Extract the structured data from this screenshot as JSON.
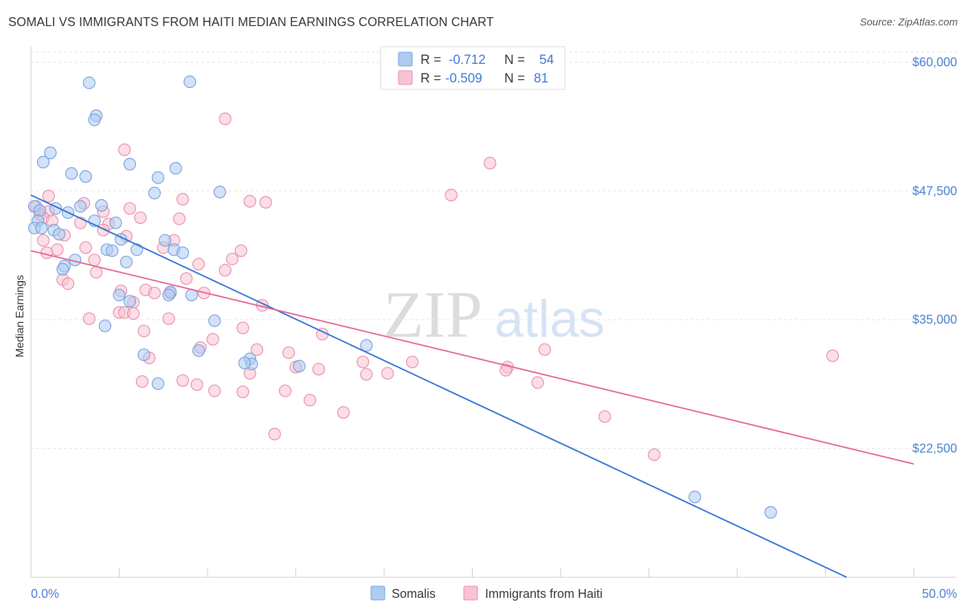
{
  "title": "SOMALI VS IMMIGRANTS FROM HAITI MEDIAN EARNINGS CORRELATION CHART",
  "source": "Source: ZipAtlas.com",
  "watermark": {
    "zip": "ZIP",
    "atlas": "atlas"
  },
  "legend_top": [
    {
      "r_label": "R =",
      "r_value": "-0.712",
      "n_label": "N =",
      "n_value": "54",
      "color": "#aecbf0",
      "stroke": "#6f9fde"
    },
    {
      "r_label": "R =",
      "r_value": "-0.509",
      "n_label": "N =",
      "n_value": "81",
      "color": "#f8c3d2",
      "stroke": "#e98aa8"
    }
  ],
  "legend_bottom": [
    {
      "label": "Somalis",
      "color": "#aecbf0",
      "stroke": "#6f9fde"
    },
    {
      "label": "Immigrants from Haiti",
      "color": "#f8c3d2",
      "stroke": "#e98aa8"
    }
  ],
  "chart_data": {
    "type": "scatter",
    "ylabel": "Median Earnings",
    "xlabel": "",
    "x_tick_labels": [
      "0.0%",
      "50.0%"
    ],
    "y_tick_labels": [
      "$60,000",
      "$47,500",
      "$35,000",
      "$22,500"
    ],
    "y_ticks": [
      60000,
      47500,
      35000,
      22500
    ],
    "xlim": [
      0,
      50
    ],
    "ylim": [
      10000,
      61500
    ],
    "grid": true,
    "legend_position": "top-center",
    "series": [
      {
        "name": "Somalis",
        "color": "#6f9fde",
        "fill": "#aecbf0",
        "line_color": "#2f6fd6",
        "trend": {
          "x0": 0,
          "y0": 47100,
          "x1": 46.2,
          "y1": 10000
        },
        "points": [
          [
            3.3,
            58000
          ],
          [
            9.0,
            58100
          ],
          [
            3.7,
            54800
          ],
          [
            3.6,
            54400
          ],
          [
            1.1,
            51200
          ],
          [
            0.7,
            50300
          ],
          [
            5.6,
            50100
          ],
          [
            8.2,
            49700
          ],
          [
            2.3,
            49200
          ],
          [
            3.1,
            48900
          ],
          [
            7.2,
            48800
          ],
          [
            7.0,
            47300
          ],
          [
            10.7,
            47400
          ],
          [
            0.2,
            46000
          ],
          [
            2.8,
            46000
          ],
          [
            4.0,
            46100
          ],
          [
            0.5,
            45600
          ],
          [
            1.4,
            45800
          ],
          [
            2.1,
            45400
          ],
          [
            0.4,
            44600
          ],
          [
            4.8,
            44400
          ],
          [
            3.6,
            44600
          ],
          [
            0.2,
            43900
          ],
          [
            1.3,
            43700
          ],
          [
            0.6,
            43900
          ],
          [
            1.6,
            43300
          ],
          [
            5.1,
            42800
          ],
          [
            7.6,
            42700
          ],
          [
            4.3,
            41800
          ],
          [
            4.6,
            41700
          ],
          [
            6.0,
            41800
          ],
          [
            8.1,
            41800
          ],
          [
            8.6,
            41500
          ],
          [
            2.5,
            40800
          ],
          [
            5.4,
            40600
          ],
          [
            1.9,
            40200
          ],
          [
            1.8,
            39900
          ],
          [
            7.9,
            37700
          ],
          [
            7.8,
            37400
          ],
          [
            9.1,
            37400
          ],
          [
            5.0,
            37400
          ],
          [
            5.6,
            36800
          ],
          [
            10.4,
            34900
          ],
          [
            4.2,
            34400
          ],
          [
            12.4,
            31200
          ],
          [
            12.5,
            30700
          ],
          [
            19.0,
            32500
          ],
          [
            9.5,
            32000
          ],
          [
            6.4,
            31600
          ],
          [
            12.1,
            30800
          ],
          [
            15.2,
            30500
          ],
          [
            7.2,
            28800
          ],
          [
            37.6,
            17800
          ],
          [
            41.9,
            16300
          ]
        ]
      },
      {
        "name": "Immigrants from Haiti",
        "color": "#e98aa8",
        "fill": "#f8c3d2",
        "line_color": "#e26690",
        "trend": {
          "x0": 0,
          "y0": 41700,
          "x1": 50,
          "y1": 21000
        },
        "points": [
          [
            11.0,
            54500
          ],
          [
            5.3,
            51500
          ],
          [
            26.0,
            50200
          ],
          [
            23.8,
            47100
          ],
          [
            1.0,
            47000
          ],
          [
            8.6,
            46700
          ],
          [
            12.4,
            46500
          ],
          [
            13.3,
            46400
          ],
          [
            3.0,
            46300
          ],
          [
            0.3,
            46000
          ],
          [
            5.6,
            45800
          ],
          [
            1.0,
            45500
          ],
          [
            4.1,
            45500
          ],
          [
            0.5,
            45200
          ],
          [
            0.7,
            44900
          ],
          [
            6.2,
            44900
          ],
          [
            8.4,
            44800
          ],
          [
            1.2,
            44600
          ],
          [
            2.8,
            44400
          ],
          [
            4.4,
            44300
          ],
          [
            4.1,
            43700
          ],
          [
            1.9,
            43200
          ],
          [
            5.4,
            43100
          ],
          [
            0.7,
            42700
          ],
          [
            8.1,
            42700
          ],
          [
            7.5,
            42000
          ],
          [
            3.1,
            42000
          ],
          [
            11.9,
            41700
          ],
          [
            1.5,
            41800
          ],
          [
            0.9,
            41500
          ],
          [
            11.4,
            40900
          ],
          [
            3.6,
            40800
          ],
          [
            9.5,
            40400
          ],
          [
            11.0,
            39800
          ],
          [
            3.7,
            39600
          ],
          [
            8.8,
            39000
          ],
          [
            1.8,
            38900
          ],
          [
            2.1,
            38500
          ],
          [
            5.1,
            37800
          ],
          [
            6.5,
            37900
          ],
          [
            7.0,
            37600
          ],
          [
            7.9,
            37600
          ],
          [
            9.8,
            37600
          ],
          [
            5.8,
            36700
          ],
          [
            13.1,
            36400
          ],
          [
            5.0,
            35700
          ],
          [
            5.3,
            35700
          ],
          [
            5.8,
            35600
          ],
          [
            3.3,
            35100
          ],
          [
            7.8,
            35100
          ],
          [
            12.0,
            34200
          ],
          [
            6.4,
            33900
          ],
          [
            16.5,
            33600
          ],
          [
            10.3,
            33100
          ],
          [
            9.6,
            32300
          ],
          [
            29.1,
            32100
          ],
          [
            12.8,
            32100
          ],
          [
            14.6,
            31800
          ],
          [
            45.4,
            31500
          ],
          [
            6.7,
            31300
          ],
          [
            18.8,
            30900
          ],
          [
            21.6,
            30900
          ],
          [
            15.0,
            30400
          ],
          [
            27.0,
            30400
          ],
          [
            26.9,
            30100
          ],
          [
            16.3,
            30200
          ],
          [
            12.4,
            29800
          ],
          [
            19.0,
            29700
          ],
          [
            20.2,
            29800
          ],
          [
            6.3,
            29000
          ],
          [
            8.6,
            29100
          ],
          [
            28.7,
            28900
          ],
          [
            9.4,
            28700
          ],
          [
            10.4,
            28100
          ],
          [
            12.0,
            28000
          ],
          [
            14.4,
            28100
          ],
          [
            15.8,
            27200
          ],
          [
            17.7,
            26000
          ],
          [
            32.5,
            25600
          ],
          [
            13.8,
            23900
          ],
          [
            35.3,
            21900
          ]
        ]
      }
    ]
  }
}
